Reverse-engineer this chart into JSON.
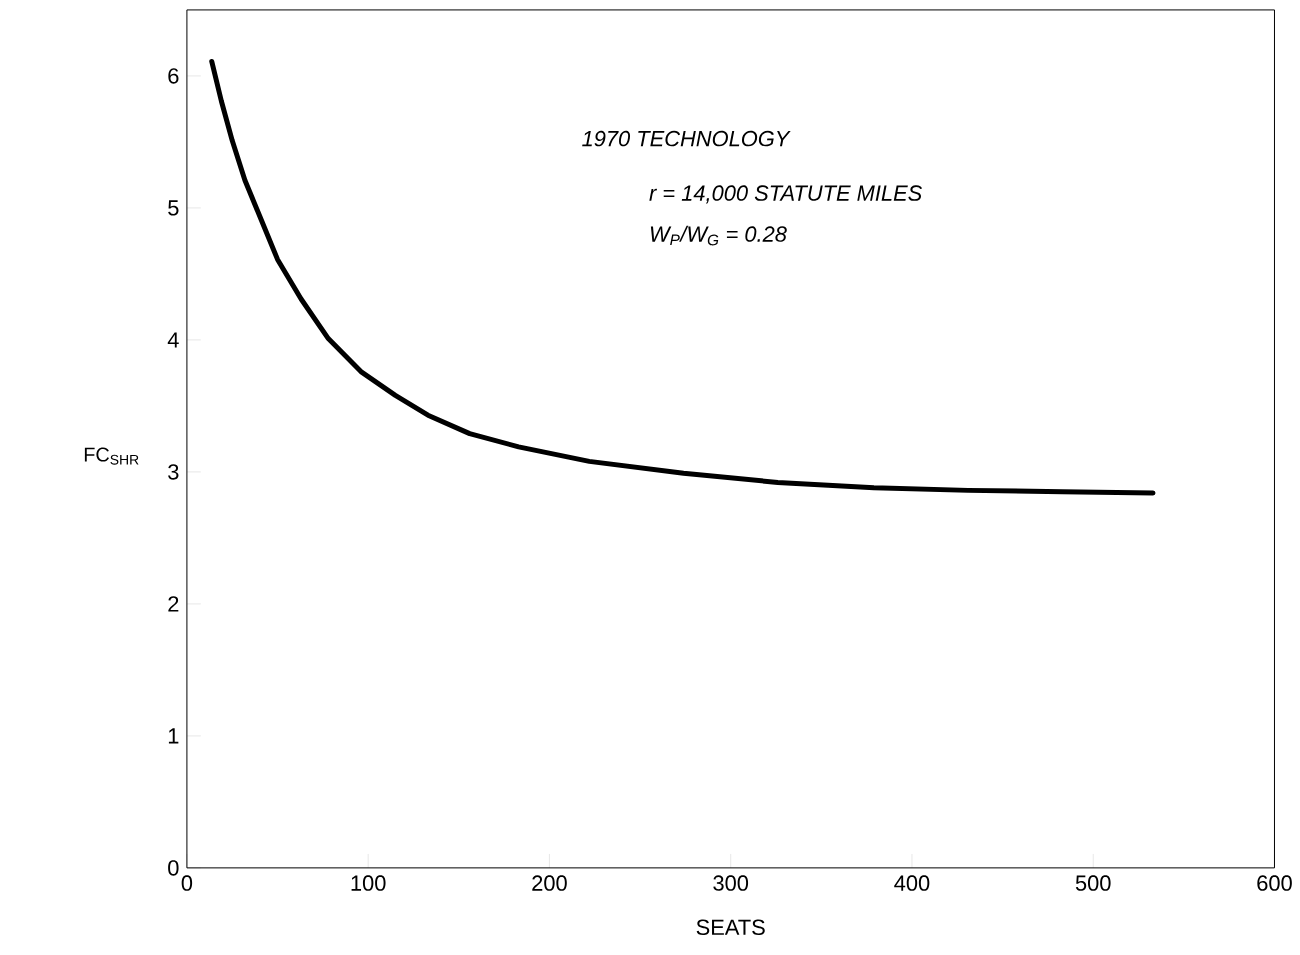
{
  "chart_data": {
    "type": "line",
    "xlabel": "SEATS",
    "ylabel": "FC$_{SHR}$",
    "annotations": [
      "1970 TECHNOLOGY",
      "r = 14,000 STATUTE MILES",
      "W$_{P}$/W$_{G}$ = 0.28"
    ],
    "x": [
      13.7,
      19,
      25,
      32,
      41,
      50,
      63,
      78,
      96,
      115,
      133,
      156,
      183,
      222,
      274,
      326,
      379,
      431,
      483,
      533
    ],
    "values": [
      6.11,
      5.81,
      5.51,
      5.21,
      4.91,
      4.61,
      4.31,
      4.01,
      3.76,
      3.58,
      3.43,
      3.29,
      3.19,
      3.08,
      2.99,
      2.92,
      2.88,
      2.86,
      2.85,
      2.84
    ],
    "color": "#000000",
    "xlim": [
      0,
      600
    ],
    "ylim": [
      0,
      6.5
    ],
    "xticks": [
      0,
      100,
      200,
      300,
      400,
      500,
      600
    ],
    "yticks": [
      0,
      1,
      2,
      3,
      4,
      5,
      6
    ]
  }
}
